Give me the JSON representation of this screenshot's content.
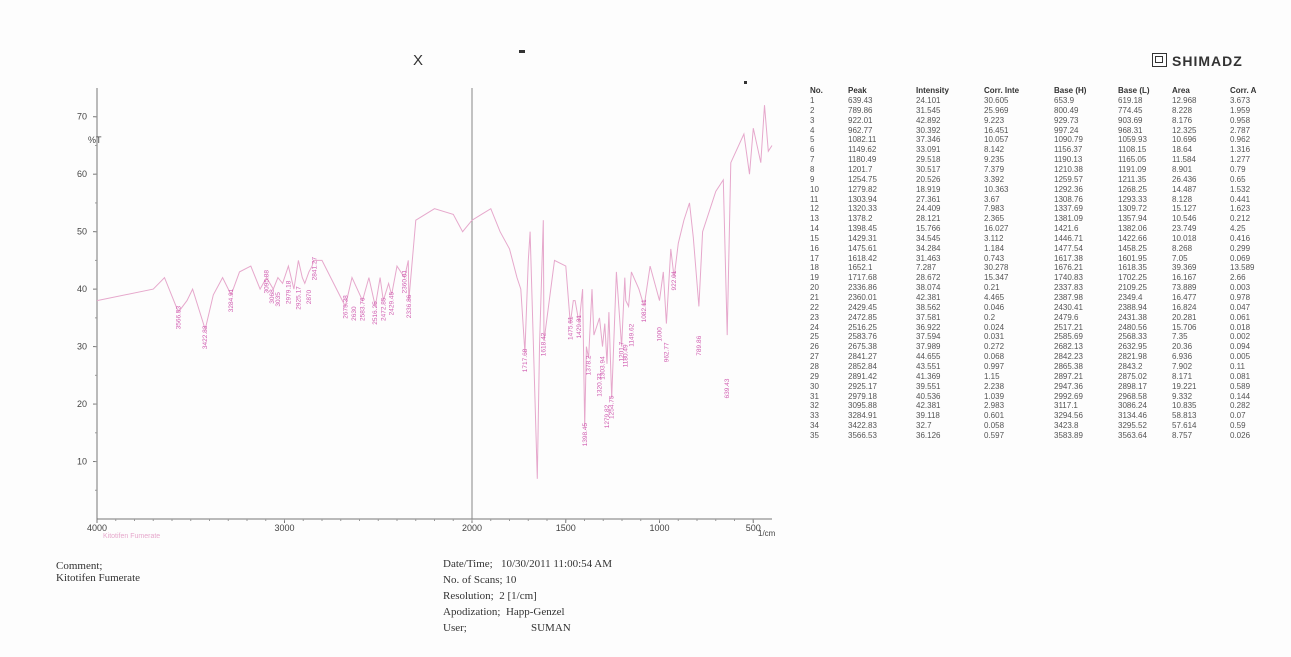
{
  "brand": "SHIMADZ",
  "marks": {
    "x": "X"
  },
  "chart_data": {
    "type": "line",
    "ylabel": "%T",
    "xlabel": "1/cm",
    "xlim": [
      4000,
      400
    ],
    "ylim": [
      0,
      75
    ],
    "x_ticks": [
      "4000",
      "3000",
      "2000",
      "1500",
      "1000",
      "500"
    ],
    "y_ticks": [
      "70",
      "60",
      "50",
      "40",
      "30",
      "20",
      "10"
    ],
    "sample_label": "Kitotifen Fumerate",
    "series": [
      {
        "x": [
          4000,
          3700,
          3640,
          3566,
          3520,
          3490,
          3423,
          3380,
          3330,
          3285,
          3240,
          3180,
          3130,
          3096,
          3060,
          3035,
          3010,
          2979,
          2950,
          2926,
          2905,
          2892,
          2870,
          2853,
          2845,
          2841,
          2800,
          2676,
          2640,
          2584,
          2550,
          2516,
          2490,
          2473,
          2445,
          2429,
          2400,
          2360,
          2340,
          2337,
          2300,
          2200,
          2100,
          2050,
          2000,
          1950,
          1900,
          1850,
          1800,
          1760,
          1740,
          1718,
          1700,
          1690,
          1652,
          1640,
          1620,
          1616,
          1560,
          1500,
          1476,
          1460,
          1450,
          1429,
          1410,
          1399,
          1390,
          1378,
          1360,
          1350,
          1320,
          1304,
          1292,
          1280,
          1270,
          1255,
          1230,
          1202,
          1185,
          1180,
          1165,
          1150,
          1110,
          1082,
          1050,
          1000,
          980,
          963,
          940,
          922,
          900,
          870,
          840,
          820,
          790,
          770,
          700,
          660,
          639,
          620,
          550,
          520,
          500,
          460,
          440,
          420,
          400
        ],
        "y": [
          38,
          40,
          42,
          36,
          38,
          40,
          33,
          39,
          42,
          39,
          43,
          44,
          40,
          42,
          40,
          42,
          41,
          44,
          40,
          45,
          42,
          41,
          43,
          44,
          45,
          45,
          45,
          37,
          42,
          38,
          42,
          37,
          42,
          38,
          41,
          39,
          44,
          42,
          45,
          38,
          52,
          54,
          53,
          50,
          52,
          53,
          54,
          50,
          47,
          42,
          40,
          29,
          45,
          50,
          7,
          30,
          52,
          31,
          45,
          44,
          34,
          38,
          38,
          34,
          40,
          16,
          30,
          28,
          40,
          32,
          35,
          30,
          34,
          27,
          36,
          21,
          43,
          30,
          42,
          38,
          37,
          43,
          40,
          37,
          44,
          38,
          43,
          34,
          47,
          42,
          48,
          52,
          55,
          49,
          37,
          50,
          57,
          59,
          32,
          62,
          67,
          60,
          68,
          62,
          72,
          64,
          65
        ]
      }
    ],
    "peak_annotations": [
      {
        "x": 3566.53,
        "y": 36.126
      },
      {
        "x": 3422.83,
        "y": 32.7
      },
      {
        "x": 3284.91,
        "y": 39.118
      },
      {
        "x": 3095.88,
        "y": 42.381
      },
      {
        "x": 3068,
        "y": 40.6
      },
      {
        "x": 3035,
        "y": 40.1
      },
      {
        "x": 2979.18,
        "y": 40.536
      },
      {
        "x": 2925.17,
        "y": 39.551
      },
      {
        "x": 2870,
        "y": 40.5
      },
      {
        "x": 2841.27,
        "y": 44.655
      },
      {
        "x": 2675.38,
        "y": 37.989
      },
      {
        "x": 2630,
        "y": 37.6
      },
      {
        "x": 2583.76,
        "y": 37.594
      },
      {
        "x": 2516.25,
        "y": 36.922
      },
      {
        "x": 2472.85,
        "y": 37.581
      },
      {
        "x": 2429.45,
        "y": 38.562
      },
      {
        "x": 2360.01,
        "y": 42.381
      },
      {
        "x": 2336.86,
        "y": 38.074
      },
      {
        "x": 1717.68,
        "y": 28.672
      },
      {
        "x": 1618.42,
        "y": 31.463
      },
      {
        "x": 1475.61,
        "y": 34.284
      },
      {
        "x": 1429.31,
        "y": 34.545
      },
      {
        "x": 1398.45,
        "y": 15.766
      },
      {
        "x": 1378.2,
        "y": 28.121
      },
      {
        "x": 1320.33,
        "y": 24.409
      },
      {
        "x": 1303.94,
        "y": 27.361
      },
      {
        "x": 1279.82,
        "y": 18.919
      },
      {
        "x": 1254.75,
        "y": 20.526
      },
      {
        "x": 1201.7,
        "y": 30.517
      },
      {
        "x": 1180.49,
        "y": 29.518
      },
      {
        "x": 1149.62,
        "y": 33.091
      },
      {
        "x": 1082.11,
        "y": 37.346
      },
      {
        "x": 1000,
        "y": 34
      },
      {
        "x": 962.77,
        "y": 30.392
      },
      {
        "x": 922.01,
        "y": 42.892
      },
      {
        "x": 789.86,
        "y": 31.545
      },
      {
        "x": 639.43,
        "y": 24.101
      }
    ],
    "peak_table": {
      "columns": [
        "No.",
        "Peak",
        "Intensity",
        "Corr. Inte",
        "Base (H)",
        "Base (L)",
        "Area",
        "Corr. A"
      ],
      "rows": [
        [
          "1",
          "639.43",
          "24.101",
          "30.605",
          "653.9",
          "619.18",
          "12.968",
          "3.673"
        ],
        [
          "2",
          "789.86",
          "31.545",
          "25.969",
          "800.49",
          "774.45",
          "8.228",
          "1.959"
        ],
        [
          "3",
          "922.01",
          "42.892",
          "9.223",
          "929.73",
          "903.69",
          "8.176",
          "0.958"
        ],
        [
          "4",
          "962.77",
          "30.392",
          "16.451",
          "997.24",
          "968.31",
          "12.325",
          "2.787"
        ],
        [
          "5",
          "1082.11",
          "37.346",
          "10.057",
          "1090.79",
          "1059.93",
          "10.696",
          "0.962"
        ],
        [
          "6",
          "1149.62",
          "33.091",
          "8.142",
          "1156.37",
          "1108.15",
          "18.64",
          "1.316"
        ],
        [
          "7",
          "1180.49",
          "29.518",
          "9.235",
          "1190.13",
          "1165.05",
          "11.584",
          "1.277"
        ],
        [
          "8",
          "1201.7",
          "30.517",
          "7.379",
          "1210.38",
          "1191.09",
          "8.901",
          "0.79"
        ],
        [
          "9",
          "1254.75",
          "20.526",
          "3.392",
          "1259.57",
          "1211.35",
          "26.436",
          "0.65"
        ],
        [
          "10",
          "1279.82",
          "18.919",
          "10.363",
          "1292.36",
          "1268.25",
          "14.487",
          "1.532"
        ],
        [
          "11",
          "1303.94",
          "27.361",
          "3.67",
          "1308.76",
          "1293.33",
          "8.128",
          "0.441"
        ],
        [
          "12",
          "1320.33",
          "24.409",
          "7.983",
          "1337.69",
          "1309.72",
          "15.127",
          "1.623"
        ],
        [
          "13",
          "1378.2",
          "28.121",
          "2.365",
          "1381.09",
          "1357.94",
          "10.546",
          "0.212"
        ],
        [
          "14",
          "1398.45",
          "15.766",
          "16.027",
          "1421.6",
          "1382.06",
          "23.749",
          "4.25"
        ],
        [
          "15",
          "1429.31",
          "34.545",
          "3.112",
          "1446.71",
          "1422.66",
          "10.018",
          "0.416"
        ],
        [
          "16",
          "1475.61",
          "34.284",
          "1.184",
          "1477.54",
          "1458.25",
          "8.268",
          "0.299"
        ],
        [
          "17",
          "1618.42",
          "31.463",
          "0.743",
          "1617.38",
          "1601.95",
          "7.05",
          "0.069"
        ],
        [
          "18",
          "1652.1",
          "7.287",
          "30.278",
          "1676.21",
          "1618.35",
          "39.369",
          "13.589"
        ],
        [
          "19",
          "1717.68",
          "28.672",
          "15.347",
          "1740.83",
          "1702.25",
          "16.167",
          "2.66"
        ],
        [
          "20",
          "2336.86",
          "38.074",
          "0.21",
          "2337.83",
          "2109.25",
          "73.889",
          "0.003"
        ],
        [
          "21",
          "2360.01",
          "42.381",
          "4.465",
          "2387.98",
          "2349.4",
          "16.477",
          "0.978"
        ],
        [
          "22",
          "2429.45",
          "38.562",
          "0.046",
          "2430.41",
          "2388.94",
          "16.824",
          "0.047"
        ],
        [
          "23",
          "2472.85",
          "37.581",
          "0.2",
          "2479.6",
          "2431.38",
          "20.281",
          "0.061"
        ],
        [
          "24",
          "2516.25",
          "36.922",
          "0.024",
          "2517.21",
          "2480.56",
          "15.706",
          "0.018"
        ],
        [
          "25",
          "2583.76",
          "37.594",
          "0.031",
          "2585.69",
          "2568.33",
          "7.35",
          "0.002"
        ],
        [
          "26",
          "2675.38",
          "37.989",
          "0.272",
          "2682.13",
          "2632.95",
          "20.36",
          "0.094"
        ],
        [
          "27",
          "2841.27",
          "44.655",
          "0.068",
          "2842.23",
          "2821.98",
          "6.936",
          "0.005"
        ],
        [
          "28",
          "2852.84",
          "43.551",
          "0.997",
          "2865.38",
          "2843.2",
          "7.902",
          "0.11"
        ],
        [
          "29",
          "2891.42",
          "41.369",
          "1.15",
          "2897.21",
          "2875.02",
          "8.171",
          "0.081"
        ],
        [
          "30",
          "2925.17",
          "39.551",
          "2.238",
          "2947.36",
          "2898.17",
          "19.221",
          "0.589"
        ],
        [
          "31",
          "2979.18",
          "40.536",
          "1.039",
          "2992.69",
          "2968.58",
          "9.332",
          "0.144"
        ],
        [
          "32",
          "3095.88",
          "42.381",
          "2.983",
          "3117.1",
          "3086.24",
          "10.835",
          "0.282"
        ],
        [
          "33",
          "3284.91",
          "39.118",
          "0.601",
          "3294.56",
          "3134.46",
          "58.813",
          "0.07"
        ],
        [
          "34",
          "3422.83",
          "32.7",
          "0.058",
          "3423.8",
          "3295.52",
          "57.614",
          "0.59"
        ],
        [
          "35",
          "3566.53",
          "36.126",
          "0.597",
          "3583.89",
          "3563.64",
          "8.757",
          "0.026"
        ]
      ]
    }
  },
  "footer": {
    "comment_label": "Comment;",
    "comment_value": "Kitotifen Fumerate",
    "date_label": "Date/Time;",
    "date_value": "10/30/2011 11:00:54 AM",
    "scans_label": "No. of Scans;",
    "scans_value": "10",
    "resolution_label": "Resolution;",
    "resolution_value": "2 [1/cm]",
    "apodization_label": "Apodization;",
    "apodization_value": "Happ-Genzel",
    "user_label": "User;",
    "user_value": "SUMAN"
  }
}
